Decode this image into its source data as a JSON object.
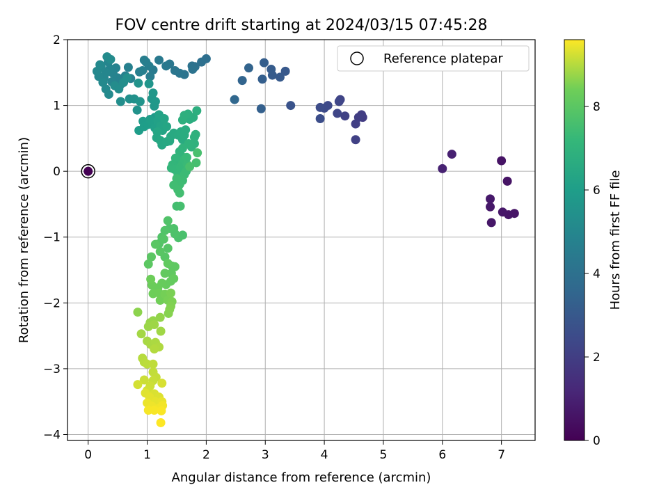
{
  "chart_data": {
    "type": "scatter",
    "title": "FOV centre drift starting at 2024/03/15 07:45:28",
    "xlabel": "Angular distance from reference (arcmin)",
    "ylabel": "Rotation from reference (arcmin)",
    "xlim": [
      -0.35,
      7.57
    ],
    "ylim": [
      -4.09,
      2.0
    ],
    "xticks": [
      0,
      1,
      2,
      3,
      4,
      5,
      6,
      7
    ],
    "yticks": [
      -4,
      -3,
      -2,
      -1,
      0,
      1,
      2
    ],
    "grid": true,
    "legend": {
      "position": "top-right",
      "entries": [
        "Reference platepar"
      ]
    },
    "colorbar": {
      "label": "Hours from first FF file",
      "range": [
        0,
        9.6
      ],
      "ticks": [
        0,
        2,
        4,
        6,
        8
      ],
      "colormap": "viridis"
    },
    "reference_point": {
      "x": 0,
      "y": 0,
      "label": "Reference platepar"
    },
    "points": [
      [
        0.0,
        0.0,
        0.0
      ],
      [
        7.0,
        0.16,
        0.55
      ],
      [
        7.1,
        -0.15,
        0.58
      ],
      [
        7.22,
        -0.64,
        0.6
      ],
      [
        7.12,
        -0.66,
        0.62
      ],
      [
        7.02,
        -0.62,
        0.65
      ],
      [
        6.83,
        -0.78,
        0.68
      ],
      [
        6.81,
        -0.54,
        0.7
      ],
      [
        6.81,
        -0.42,
        0.72
      ],
      [
        6.16,
        0.26,
        0.95
      ],
      [
        6.0,
        0.04,
        1.0
      ],
      [
        4.65,
        0.82,
        1.9
      ],
      [
        4.63,
        0.86,
        1.95
      ],
      [
        4.58,
        0.82,
        2.0
      ],
      [
        4.53,
        0.72,
        2.05
      ],
      [
        4.53,
        0.48,
        2.1
      ],
      [
        4.35,
        0.84,
        2.15
      ],
      [
        4.27,
        1.09,
        2.2
      ],
      [
        4.22,
        0.88,
        2.25
      ],
      [
        4.25,
        1.06,
        2.3
      ],
      [
        4.06,
        1.0,
        2.4
      ],
      [
        4.0,
        0.96,
        2.45
      ],
      [
        3.93,
        0.97,
        2.5
      ],
      [
        3.93,
        0.8,
        2.55
      ],
      [
        3.43,
        1.0,
        2.8
      ],
      [
        3.34,
        1.52,
        3.0
      ],
      [
        3.25,
        1.43,
        3.05
      ],
      [
        3.12,
        1.46,
        3.1
      ],
      [
        3.1,
        1.55,
        3.15
      ],
      [
        2.98,
        1.65,
        3.2
      ],
      [
        2.95,
        1.4,
        3.25
      ],
      [
        2.93,
        0.95,
        3.3
      ],
      [
        2.72,
        1.57,
        3.45
      ],
      [
        2.61,
        1.38,
        3.5
      ],
      [
        2.48,
        1.09,
        3.6
      ],
      [
        2.0,
        1.71,
        3.9
      ],
      [
        1.92,
        1.66,
        3.95
      ],
      [
        1.81,
        1.59,
        4.0
      ],
      [
        1.76,
        1.6,
        4.05
      ],
      [
        1.77,
        1.55,
        4.1
      ],
      [
        1.63,
        1.47,
        4.15
      ],
      [
        1.55,
        1.49,
        4.2
      ],
      [
        1.47,
        1.53,
        4.25
      ],
      [
        1.38,
        1.63,
        4.3
      ],
      [
        1.32,
        1.6,
        4.35
      ],
      [
        1.2,
        1.69,
        4.4
      ],
      [
        1.1,
        1.54,
        4.45
      ],
      [
        1.05,
        1.44,
        4.5
      ],
      [
        1.03,
        1.6,
        4.55
      ],
      [
        0.98,
        1.66,
        4.6
      ],
      [
        0.95,
        1.69,
        4.62
      ],
      [
        0.92,
        1.53,
        4.65
      ],
      [
        0.87,
        1.51,
        4.68
      ],
      [
        0.72,
        1.41,
        4.7
      ],
      [
        0.68,
        1.58,
        4.72
      ],
      [
        0.63,
        1.45,
        4.75
      ],
      [
        0.55,
        1.32,
        4.78
      ],
      [
        0.5,
        1.42,
        4.8
      ],
      [
        0.47,
        1.57,
        4.82
      ],
      [
        0.42,
        1.49,
        4.85
      ],
      [
        0.4,
        1.36,
        4.88
      ],
      [
        0.37,
        1.56,
        4.9
      ],
      [
        0.34,
        1.66,
        4.92
      ],
      [
        0.3,
        1.5,
        4.95
      ],
      [
        0.27,
        1.42,
        4.98
      ],
      [
        0.22,
        1.58,
        5.0
      ],
      [
        0.18,
        1.44,
        5.02
      ],
      [
        0.15,
        1.52,
        5.05
      ],
      [
        0.2,
        1.62,
        5.08
      ],
      [
        0.25,
        1.35,
        5.1
      ],
      [
        0.3,
        1.25,
        5.12
      ],
      [
        0.35,
        1.17,
        5.15
      ],
      [
        0.32,
        1.74,
        5.18
      ],
      [
        0.38,
        1.7,
        5.2
      ],
      [
        0.45,
        1.3,
        5.22
      ],
      [
        0.52,
        1.25,
        5.25
      ],
      [
        0.55,
        1.06,
        5.3
      ],
      [
        0.6,
        1.35,
        5.32
      ],
      [
        0.66,
        1.42,
        5.35
      ],
      [
        0.7,
        1.1,
        5.4
      ],
      [
        0.78,
        1.1,
        5.45
      ],
      [
        0.83,
        0.93,
        5.5
      ],
      [
        0.85,
        1.34,
        5.52
      ],
      [
        0.88,
        1.06,
        5.55
      ],
      [
        1.03,
        1.33,
        5.6
      ],
      [
        1.08,
        1.1,
        5.65
      ],
      [
        1.1,
        1.19,
        5.68
      ],
      [
        1.12,
        0.99,
        5.72
      ],
      [
        1.14,
        1.06,
        5.75
      ],
      [
        1.13,
        0.82,
        5.8
      ],
      [
        1.05,
        0.79,
        5.85
      ],
      [
        0.98,
        0.71,
        5.88
      ],
      [
        0.93,
        0.76,
        5.9
      ],
      [
        0.86,
        0.62,
        5.95
      ],
      [
        0.95,
        0.68,
        6.0
      ],
      [
        1.01,
        0.71,
        6.02
      ],
      [
        1.06,
        0.77,
        6.05
      ],
      [
        1.13,
        0.66,
        6.1
      ],
      [
        1.18,
        0.77,
        6.15
      ],
      [
        1.2,
        0.86,
        6.2
      ],
      [
        1.23,
        0.69,
        6.25
      ],
      [
        1.26,
        0.62,
        6.28
      ],
      [
        1.29,
        0.8,
        6.3
      ],
      [
        1.33,
        0.68,
        6.35
      ],
      [
        1.17,
        0.6,
        6.38
      ],
      [
        1.16,
        0.51,
        6.4
      ],
      [
        1.22,
        0.47,
        6.42
      ],
      [
        1.25,
        0.4,
        6.45
      ],
      [
        1.33,
        0.45,
        6.48
      ],
      [
        1.38,
        0.46,
        6.5
      ],
      [
        1.4,
        0.53,
        6.52
      ],
      [
        1.45,
        0.58,
        6.55
      ],
      [
        1.52,
        0.55,
        6.58
      ],
      [
        1.57,
        0.6,
        6.6
      ],
      [
        1.6,
        0.48,
        6.62
      ],
      [
        1.63,
        0.55,
        6.65
      ],
      [
        1.65,
        0.63,
        6.68
      ],
      [
        1.72,
        0.79,
        6.7
      ],
      [
        1.78,
        0.82,
        6.72
      ],
      [
        1.84,
        0.92,
        6.75
      ],
      [
        1.69,
        0.87,
        6.78
      ],
      [
        1.63,
        0.85,
        6.8
      ],
      [
        1.6,
        0.78,
        6.82
      ],
      [
        1.8,
        0.52,
        6.85
      ],
      [
        1.82,
        0.56,
        6.88
      ],
      [
        1.8,
        0.42,
        6.9
      ],
      [
        1.75,
        0.37,
        6.92
      ],
      [
        1.7,
        0.42,
        6.95
      ],
      [
        1.6,
        0.35,
        6.98
      ],
      [
        1.55,
        0.3,
        7.0
      ],
      [
        1.57,
        0.24,
        7.02
      ],
      [
        1.5,
        0.13,
        7.05
      ],
      [
        1.48,
        0.2,
        7.08
      ],
      [
        1.43,
        0.1,
        7.1
      ],
      [
        1.41,
        0.05,
        7.12
      ],
      [
        1.46,
        0.03,
        7.15
      ],
      [
        1.52,
        -0.03,
        7.18
      ],
      [
        1.56,
        0.06,
        7.2
      ],
      [
        1.6,
        0.12,
        7.22
      ],
      [
        1.63,
        0.18,
        7.25
      ],
      [
        1.67,
        0.21,
        7.28
      ],
      [
        1.68,
        0.1,
        7.3
      ],
      [
        1.66,
        0.0,
        7.32
      ],
      [
        1.63,
        -0.05,
        7.35
      ],
      [
        1.6,
        -0.14,
        7.38
      ],
      [
        1.55,
        -0.2,
        7.4
      ],
      [
        1.5,
        -0.11,
        7.42
      ],
      [
        1.45,
        -0.21,
        7.45
      ],
      [
        1.52,
        -0.28,
        7.48
      ],
      [
        1.55,
        -0.33,
        7.5
      ],
      [
        1.5,
        -0.53,
        7.52
      ],
      [
        1.56,
        -0.53,
        7.55
      ],
      [
        1.83,
        0.13,
        7.58
      ],
      [
        1.85,
        0.28,
        7.6
      ],
      [
        1.72,
        0.07,
        7.62
      ],
      [
        1.6,
        -0.97,
        7.65
      ],
      [
        1.53,
        -1.01,
        7.68
      ],
      [
        1.45,
        -0.87,
        7.7
      ],
      [
        1.47,
        -0.95,
        7.72
      ],
      [
        1.38,
        -0.87,
        7.75
      ],
      [
        1.35,
        -0.75,
        7.78
      ],
      [
        1.3,
        -0.9,
        7.8
      ],
      [
        1.25,
        -1.0,
        7.82
      ],
      [
        1.2,
        -1.1,
        7.85
      ],
      [
        1.28,
        -1.03,
        7.88
      ],
      [
        1.35,
        -1.17,
        7.9
      ],
      [
        1.3,
        -1.3,
        7.92
      ],
      [
        1.22,
        -1.22,
        7.95
      ],
      [
        1.14,
        -1.11,
        7.98
      ],
      [
        1.07,
        -1.3,
        8.0
      ],
      [
        1.02,
        -1.41,
        8.02
      ],
      [
        1.42,
        -1.44,
        8.05
      ],
      [
        1.47,
        -1.45,
        8.08
      ],
      [
        1.41,
        -1.55,
        8.1
      ],
      [
        1.35,
        -1.4,
        8.12
      ],
      [
        1.3,
        -1.55,
        8.15
      ],
      [
        1.45,
        -1.63,
        8.18
      ],
      [
        1.4,
        -1.67,
        8.2
      ],
      [
        1.32,
        -1.72,
        8.22
      ],
      [
        1.25,
        -1.7,
        8.25
      ],
      [
        1.18,
        -1.77,
        8.28
      ],
      [
        1.15,
        -1.8,
        8.3
      ],
      [
        1.08,
        -1.73,
        8.32
      ],
      [
        1.06,
        -1.64,
        8.35
      ],
      [
        1.1,
        -1.86,
        8.38
      ],
      [
        1.2,
        -1.85,
        8.4
      ],
      [
        1.22,
        -1.96,
        8.42
      ],
      [
        1.3,
        -1.87,
        8.45
      ],
      [
        1.35,
        -1.96,
        8.48
      ],
      [
        1.4,
        -1.85,
        8.5
      ],
      [
        1.42,
        -1.98,
        8.52
      ],
      [
        1.4,
        -2.05,
        8.55
      ],
      [
        1.38,
        -2.1,
        8.58
      ],
      [
        1.36,
        -2.16,
        8.6
      ],
      [
        0.84,
        -2.14,
        8.65
      ],
      [
        1.22,
        -2.22,
        8.7
      ],
      [
        1.1,
        -2.27,
        8.72
      ],
      [
        1.05,
        -2.3,
        8.75
      ],
      [
        1.02,
        -2.36,
        8.78
      ],
      [
        1.12,
        -2.33,
        8.8
      ],
      [
        1.23,
        -2.43,
        8.82
      ],
      [
        0.9,
        -2.47,
        8.85
      ],
      [
        1.0,
        -2.58,
        8.88
      ],
      [
        1.06,
        -2.63,
        8.9
      ],
      [
        1.14,
        -2.6,
        8.92
      ],
      [
        1.2,
        -2.67,
        8.95
      ],
      [
        1.12,
        -2.7,
        8.98
      ],
      [
        0.92,
        -2.84,
        9.0
      ],
      [
        0.95,
        -2.9,
        9.02
      ],
      [
        1.0,
        -2.93,
        9.05
      ],
      [
        1.1,
        -2.93,
        9.08
      ],
      [
        1.1,
        -3.05,
        9.1
      ],
      [
        1.15,
        -3.13,
        9.12
      ],
      [
        1.1,
        -3.18,
        9.15
      ],
      [
        0.95,
        -3.17,
        9.18
      ],
      [
        1.05,
        -3.26,
        9.2
      ],
      [
        1.0,
        -3.33,
        9.22
      ],
      [
        0.84,
        -3.24,
        9.25
      ],
      [
        1.25,
        -3.22,
        9.28
      ],
      [
        1.12,
        -3.38,
        9.3
      ],
      [
        1.2,
        -3.43,
        9.32
      ],
      [
        0.97,
        -3.37,
        9.35
      ],
      [
        1.04,
        -3.43,
        9.38
      ],
      [
        1.14,
        -3.5,
        9.4
      ],
      [
        1.25,
        -3.5,
        9.42
      ],
      [
        1.0,
        -3.52,
        9.45
      ],
      [
        1.08,
        -3.57,
        9.47
      ],
      [
        1.2,
        -3.6,
        9.49
      ],
      [
        1.26,
        -3.56,
        9.51
      ],
      [
        1.02,
        -3.63,
        9.53
      ],
      [
        1.12,
        -3.63,
        9.55
      ],
      [
        1.24,
        -3.64,
        9.57
      ],
      [
        1.23,
        -3.82,
        9.6
      ]
    ]
  }
}
